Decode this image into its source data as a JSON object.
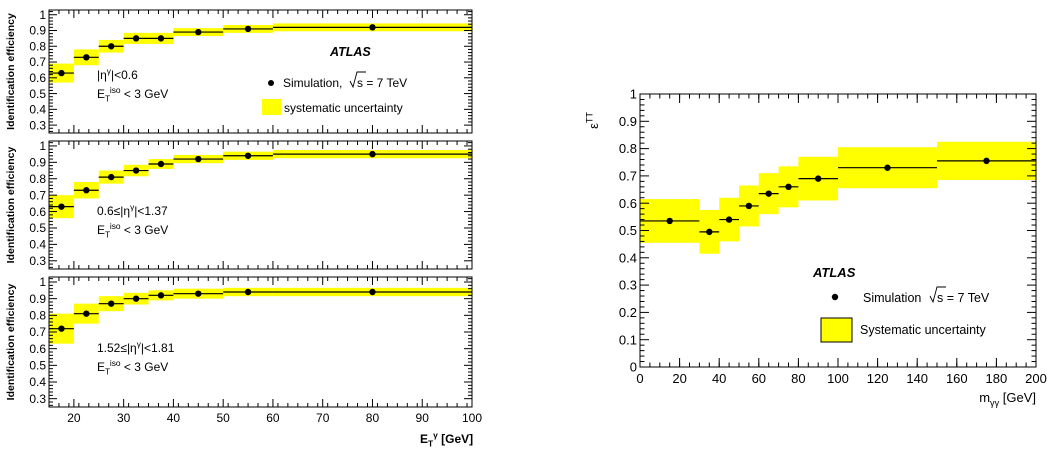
{
  "colors": {
    "band": "#ffff00",
    "band_edge": "#c8c800",
    "marker": "#000000",
    "axis": "#000000"
  },
  "chart_data": [
    {
      "type": "scatter",
      "panel": "left-top",
      "ylabel": "Identification efficiency",
      "xlim": [
        15,
        100
      ],
      "ylim": [
        0.25,
        1.03
      ],
      "yticks": [
        "0.3",
        "0.4",
        "0.5",
        "0.6",
        "0.7",
        "0.8",
        "0.9",
        "1"
      ],
      "atlas_label": "ATLAS",
      "legend": {
        "sim_label": "Simulation,",
        "sim_energy": "s = 7 TeV",
        "band_label": "systematic uncertainty"
      },
      "annotation": {
        "eta": "|η",
        "eta_sup": "γ",
        "eta_tail": "|<0.6",
        "et": "E",
        "et_sub": "T",
        "et_sup": "iso",
        "et_tail": " < 3 GeV"
      },
      "bins": [
        {
          "lo": 15,
          "hi": 20,
          "y": 0.63,
          "err": 0.06
        },
        {
          "lo": 20,
          "hi": 25,
          "y": 0.73,
          "err": 0.05
        },
        {
          "lo": 25,
          "hi": 30,
          "y": 0.8,
          "err": 0.04
        },
        {
          "lo": 30,
          "hi": 35,
          "y": 0.85,
          "err": 0.035
        },
        {
          "lo": 35,
          "hi": 40,
          "y": 0.85,
          "err": 0.035
        },
        {
          "lo": 40,
          "hi": 50,
          "y": 0.89,
          "err": 0.025
        },
        {
          "lo": 50,
          "hi": 60,
          "y": 0.91,
          "err": 0.025
        },
        {
          "lo": 60,
          "hi": 100,
          "y": 0.92,
          "err": 0.025
        }
      ]
    },
    {
      "type": "scatter",
      "panel": "left-middle",
      "ylabel": "Identification efficiency",
      "xlim": [
        15,
        100
      ],
      "ylim": [
        0.25,
        1.03
      ],
      "yticks": [
        "0.3",
        "0.4",
        "0.5",
        "0.6",
        "0.7",
        "0.8",
        "0.9",
        "1"
      ],
      "annotation": {
        "eta": "0.6≤|η",
        "eta_sup": "γ",
        "eta_tail": "|<1.37",
        "et": "E",
        "et_sub": "T",
        "et_sup": "iso",
        "et_tail": " < 3 GeV"
      },
      "bins": [
        {
          "lo": 15,
          "hi": 20,
          "y": 0.63,
          "err": 0.07
        },
        {
          "lo": 20,
          "hi": 25,
          "y": 0.73,
          "err": 0.05
        },
        {
          "lo": 25,
          "hi": 30,
          "y": 0.81,
          "err": 0.04
        },
        {
          "lo": 30,
          "hi": 35,
          "y": 0.85,
          "err": 0.035
        },
        {
          "lo": 35,
          "hi": 40,
          "y": 0.89,
          "err": 0.03
        },
        {
          "lo": 40,
          "hi": 50,
          "y": 0.92,
          "err": 0.025
        },
        {
          "lo": 50,
          "hi": 60,
          "y": 0.94,
          "err": 0.025
        },
        {
          "lo": 60,
          "hi": 100,
          "y": 0.95,
          "err": 0.025
        }
      ]
    },
    {
      "type": "scatter",
      "panel": "left-bottom",
      "ylabel": "Identification efficiency",
      "xlabel": "E",
      "xlabel_sub": "T",
      "xlabel_sup": "γ",
      "xlabel_tail": " [GeV]",
      "xlim": [
        15,
        100
      ],
      "ylim": [
        0.25,
        1.03
      ],
      "xticks": [
        "20",
        "30",
        "40",
        "50",
        "60",
        "70",
        "80",
        "90",
        "100"
      ],
      "yticks": [
        "0.3",
        "0.4",
        "0.5",
        "0.6",
        "0.7",
        "0.8",
        "0.9",
        "1"
      ],
      "annotation": {
        "eta": "1.52≤|η",
        "eta_sup": "γ",
        "eta_tail": "|<1.81",
        "et": "E",
        "et_sub": "T",
        "et_sup": "iso",
        "et_tail": " < 3 GeV"
      },
      "bins": [
        {
          "lo": 15,
          "hi": 20,
          "y": 0.72,
          "err": 0.09
        },
        {
          "lo": 20,
          "hi": 25,
          "y": 0.81,
          "err": 0.06
        },
        {
          "lo": 25,
          "hi": 30,
          "y": 0.87,
          "err": 0.045
        },
        {
          "lo": 30,
          "hi": 35,
          "y": 0.9,
          "err": 0.035
        },
        {
          "lo": 35,
          "hi": 40,
          "y": 0.92,
          "err": 0.03
        },
        {
          "lo": 40,
          "hi": 50,
          "y": 0.93,
          "err": 0.03
        },
        {
          "lo": 50,
          "hi": 60,
          "y": 0.94,
          "err": 0.025
        },
        {
          "lo": 60,
          "hi": 100,
          "y": 0.94,
          "err": 0.025
        }
      ]
    },
    {
      "type": "scatter",
      "panel": "right",
      "ylabel": "ε",
      "ylabel_sup": "TT",
      "xlabel": "m",
      "xlabel_sub": "γγ",
      "xlabel_tail": " [GeV]",
      "xlim": [
        0,
        200
      ],
      "ylim": [
        0,
        1
      ],
      "xticks": [
        "0",
        "20",
        "40",
        "60",
        "80",
        "100",
        "120",
        "140",
        "160",
        "180",
        "200"
      ],
      "yticks": [
        "0",
        "0.1",
        "0.2",
        "0.3",
        "0.4",
        "0.5",
        "0.6",
        "0.7",
        "0.8",
        "0.9",
        "1"
      ],
      "atlas_label": "ATLAS",
      "legend": {
        "sim_label": "Simulation",
        "sim_energy": "s = 7 TeV",
        "band_label": "Systematic uncertainty"
      },
      "bins": [
        {
          "lo": 0,
          "hi": 30,
          "y": 0.535,
          "err": 0.08
        },
        {
          "lo": 30,
          "hi": 40,
          "y": 0.495,
          "err": 0.08
        },
        {
          "lo": 40,
          "hi": 50,
          "y": 0.54,
          "err": 0.08
        },
        {
          "lo": 50,
          "hi": 60,
          "y": 0.59,
          "err": 0.075
        },
        {
          "lo": 60,
          "hi": 70,
          "y": 0.635,
          "err": 0.075
        },
        {
          "lo": 70,
          "hi": 80,
          "y": 0.66,
          "err": 0.075
        },
        {
          "lo": 80,
          "hi": 100,
          "y": 0.69,
          "err": 0.08
        },
        {
          "lo": 100,
          "hi": 150,
          "y": 0.73,
          "err": 0.075
        },
        {
          "lo": 150,
          "hi": 200,
          "y": 0.755,
          "err": 0.07
        }
      ]
    }
  ]
}
